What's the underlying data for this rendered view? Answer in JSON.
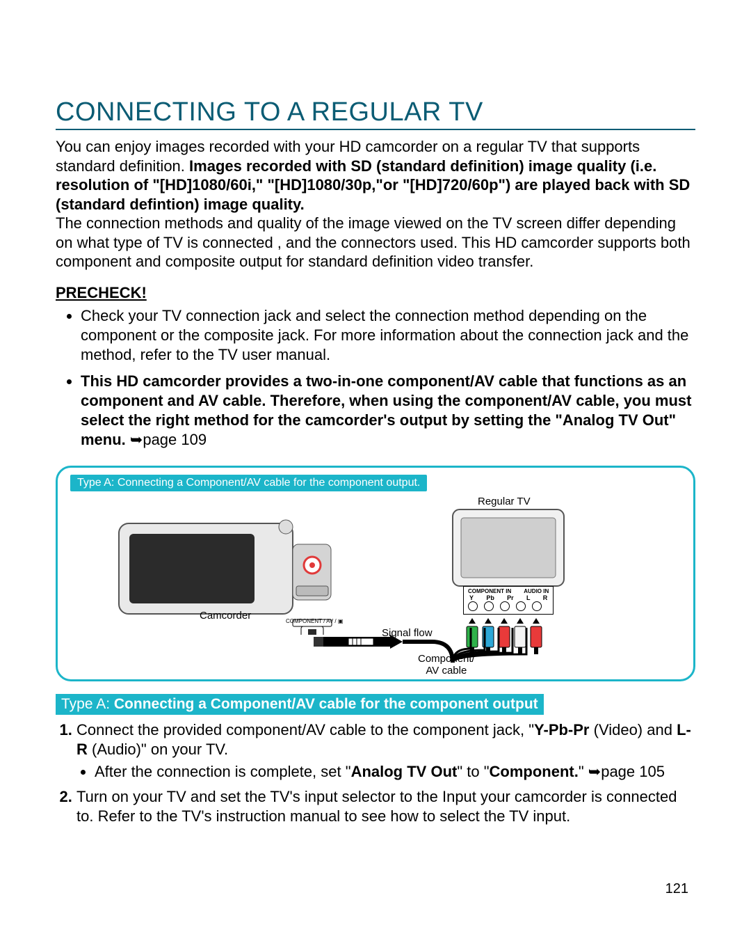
{
  "title": "CONNECTING TO A REGULAR TV",
  "intro_plain1": "You can enjoy images recorded with your HD camcorder on a regular TV that supports standard definition. ",
  "intro_bold": "Images recorded with SD (standard definition) image quality (i.e. resolution of \"[HD]1080/60i,\" \"[HD]1080/30p,\"or \"[HD]720/60p\") are played back with SD (standard defintion) image quality.",
  "intro_plain2": "The connection methods and quality of the image viewed on the TV screen differ depending on what type of TV is connected , and the connectors used. This HD camcorder supports both component and composite output for standard definition video transfer.",
  "precheck_label": "PRECHECK!",
  "precheck_items": {
    "item1": "Check your TV connection jack and select the connection method depending on the component or the composite jack. For more information about the connection jack and the method, refer to the TV user manual.",
    "item2_bold": "This HD camcorder provides a two-in-one component/AV cable that functions as an component and AV cable. Therefore, when using the component/AV cable, you must select the right method for the camcorder's output by setting the \"Analog TV Out\" menu. ",
    "item2_ref": "➥page 109"
  },
  "diagram": {
    "tab_label": "Type A: Connecting a Component/AV cable for the component output.",
    "labels": {
      "regular_tv": "Regular TV",
      "camcorder": "Camcorder",
      "signal_flow": "Signal flow",
      "component_av_cable": "Component/\nAV cable",
      "component_av_port": "COMPONENT / AV / ▣",
      "panel_component_in": "COMPONENT IN",
      "panel_audio_in": "AUDIO IN",
      "jacks": [
        "Y",
        "Pb",
        "Pr",
        "L",
        "R"
      ]
    },
    "colors": {
      "border": "#1cb5c9",
      "jack_colors": [
        "#2fb24a",
        "#2da7d6",
        "#e83a3a",
        "#f4f4f4",
        "#e83a3a"
      ]
    }
  },
  "section_heading_prefix": "Type A: ",
  "section_heading_bold": "Connecting a Component/AV cable for the component output",
  "steps": {
    "s1_a": "Connect the provided component/AV cable to the component jack, \"",
    "s1_b_bold": "Y-Pb-Pr",
    "s1_c": " (Video) and ",
    "s1_d_bold": "L-R",
    "s1_e": " (Audio)\" on your TV.",
    "s1_sub_a": "After the connection is complete, set \"",
    "s1_sub_b_bold": "Analog TV Out",
    "s1_sub_c": "\" to \"",
    "s1_sub_d_bold": "Component.",
    "s1_sub_e": "\" ➥page 105",
    "s2": "Turn on your TV and set the TV's input selector to the Input your camcorder is connected to. Refer to the TV's instruction manual to see how to select the TV input."
  },
  "page_number": "121"
}
